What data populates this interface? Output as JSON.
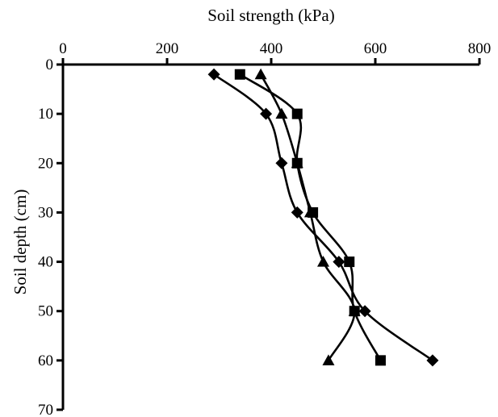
{
  "chart_data": {
    "type": "line",
    "title": "",
    "xlabel": "Soil strength (kPa)",
    "ylabel": "Soil depth (cm)",
    "xlim": [
      0,
      800
    ],
    "ylim": [
      0,
      70
    ],
    "x_axis_position": "top",
    "y_axis_inverted": true,
    "grid": false,
    "legend": "none",
    "x_ticks": [
      "0",
      "200",
      "400",
      "600",
      "800"
    ],
    "y_ticks": [
      "0",
      "10",
      "20",
      "30",
      "40",
      "50",
      "60",
      "70"
    ],
    "series": [
      {
        "marker": "diamond",
        "color": "#000000",
        "points": [
          [
            290,
            2
          ],
          [
            390,
            10
          ],
          [
            420,
            20
          ],
          [
            450,
            30
          ],
          [
            530,
            40
          ],
          [
            580,
            50
          ],
          [
            710,
            60
          ]
        ]
      },
      {
        "marker": "square",
        "color": "#000000",
        "points": [
          [
            340,
            2
          ],
          [
            450,
            10
          ],
          [
            450,
            20
          ],
          [
            480,
            30
          ],
          [
            550,
            40
          ],
          [
            560,
            50
          ],
          [
            610,
            60
          ]
        ]
      },
      {
        "marker": "triangle",
        "color": "#000000",
        "points": [
          [
            380,
            2
          ],
          [
            420,
            10
          ],
          [
            450,
            20
          ],
          [
            475,
            30
          ],
          [
            500,
            40
          ],
          [
            560,
            50
          ],
          [
            510,
            60
          ]
        ]
      }
    ]
  }
}
